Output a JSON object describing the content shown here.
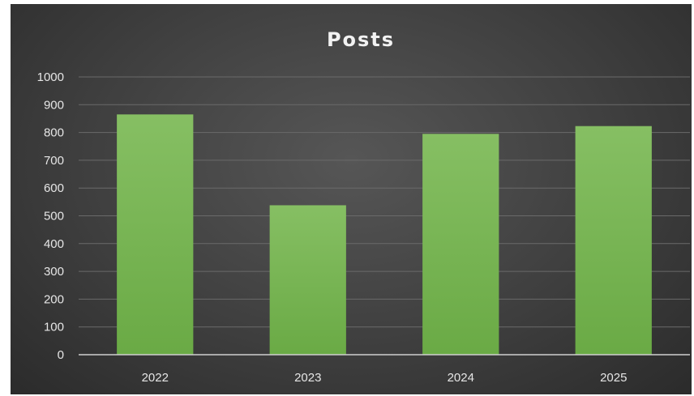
{
  "chart_data": {
    "type": "bar",
    "title": "Posts",
    "xlabel": "",
    "ylabel": "",
    "categories": [
      "2022",
      "2023",
      "2024",
      "2025"
    ],
    "values": [
      865,
      538,
      795,
      823
    ],
    "ylim": [
      0,
      1000
    ],
    "yticks": [
      "0",
      "100",
      "200",
      "300",
      "400",
      "500",
      "600",
      "700",
      "800",
      "900",
      "1000"
    ],
    "grid": true,
    "legend": "none",
    "bar_color": "#6aaa45",
    "bar_color_light": "#86bf63",
    "background_color": "#3f3f3f"
  }
}
